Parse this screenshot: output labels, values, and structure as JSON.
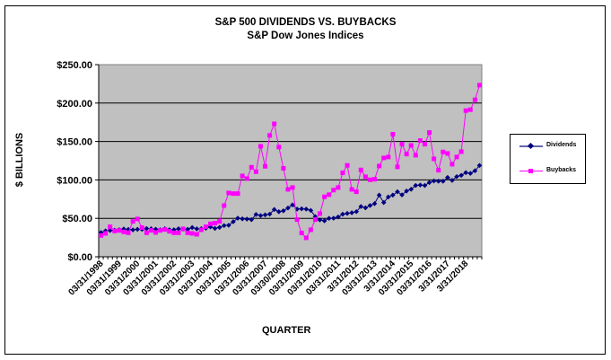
{
  "chart_data": {
    "type": "line",
    "title": "S&P 500 DIVIDENDS  VS. BUYBACKS",
    "subtitle": "S&P Dow Jones Indices",
    "xlabel": "QUARTER",
    "ylabel": "$ BILLIONS",
    "ylim": [
      0,
      250
    ],
    "yticks": [
      0,
      50,
      100,
      150,
      200,
      250
    ],
    "ytick_labels": [
      "$0.00",
      "$50.00",
      "$100.00",
      "$150.00",
      "$200.00",
      "$250.00"
    ],
    "xtick_labels": [
      "03/31/1998",
      "03/31/1999",
      "03/31/2000",
      "03/31/2001",
      "03/31/2002",
      "03/31/2003",
      "03/31/2004",
      "03/31/2005",
      "03/31/2006",
      "03/31/2007",
      "03/30/2008",
      "03/31/2009",
      "03/31/2010",
      "03/31/2011",
      "3/31/2012",
      "03/31/2013",
      "3/31/2014",
      "03/31/2015",
      "03/31/2016",
      "3/31/2017",
      "3/31/2018"
    ],
    "points_per_label": 4,
    "grid": true,
    "legend": "right",
    "colors": {
      "plot_bg": "#c0c0c0",
      "Dividends": "#000080",
      "Buybacks": "#ff00ff",
      "grid": "#000000"
    },
    "series": [
      {
        "name": "Dividends",
        "marker": "diamond",
        "values": [
          31.5,
          33.7,
          34.2,
          34.6,
          35.2,
          36.1,
          35.6,
          35.0,
          35.7,
          35.7,
          36.7,
          36.4,
          35.9,
          35.2,
          36.5,
          35.2,
          35.2,
          36.4,
          36.0,
          35.7,
          38.0,
          36.3,
          36.6,
          37.1,
          38.9,
          36.9,
          38.2,
          40.6,
          41.0,
          45.6,
          50.2,
          49.3,
          49.0,
          48.3,
          55.0,
          53.6,
          54.5,
          55.5,
          61.5,
          58.6,
          59.8,
          63.4,
          67.5,
          62.0,
          62.4,
          62.0,
          60.3,
          52.2,
          48.0,
          46.8,
          50.0,
          50.2,
          51.8,
          55.4,
          56.4,
          57.3,
          58.7,
          65.3,
          63.7,
          66.7,
          69.1,
          80.2,
          70.6,
          77.8,
          80.3,
          84.6,
          80.5,
          85.5,
          87.8,
          92.8,
          93.3,
          92.8,
          96.6,
          98.6,
          98.3,
          98.3,
          103.2,
          99.4,
          104.3,
          106.0,
          109.5,
          108.5,
          111.9,
          118.8
        ]
      },
      {
        "name": "Buybacks",
        "marker": "square",
        "values": [
          27.7,
          30.4,
          39.0,
          33.5,
          34.3,
          32.4,
          31.2,
          46.0,
          49.2,
          37.9,
          31.2,
          34.3,
          31.6,
          34.3,
          35.5,
          33.1,
          31.2,
          31.2,
          36.3,
          31.2,
          30.4,
          29.2,
          35.1,
          39.0,
          42.9,
          43.7,
          46.0,
          66.6,
          83.0,
          82.2,
          82.2,
          105.2,
          101.7,
          116.5,
          110.7,
          143.8,
          117.7,
          157.9,
          173.0,
          142.7,
          115.1,
          87.7,
          90.1,
          48.4,
          30.9,
          24.6,
          35.1,
          48.4,
          56.2,
          78.0,
          80.8,
          86.7,
          90.1,
          109.2,
          118.9,
          87.7,
          84.6,
          113.0,
          104.1,
          100.2,
          100.9,
          118.1,
          128.6,
          129.8,
          159.4,
          116.9,
          146.5,
          133.6,
          144.9,
          132.1,
          151.2,
          146.5,
          161.7,
          127.4,
          112.6,
          136.4,
          134.4,
          120.4,
          129.8,
          136.8,
          190.2,
          191.4,
          204.2,
          223.3
        ]
      }
    ]
  }
}
